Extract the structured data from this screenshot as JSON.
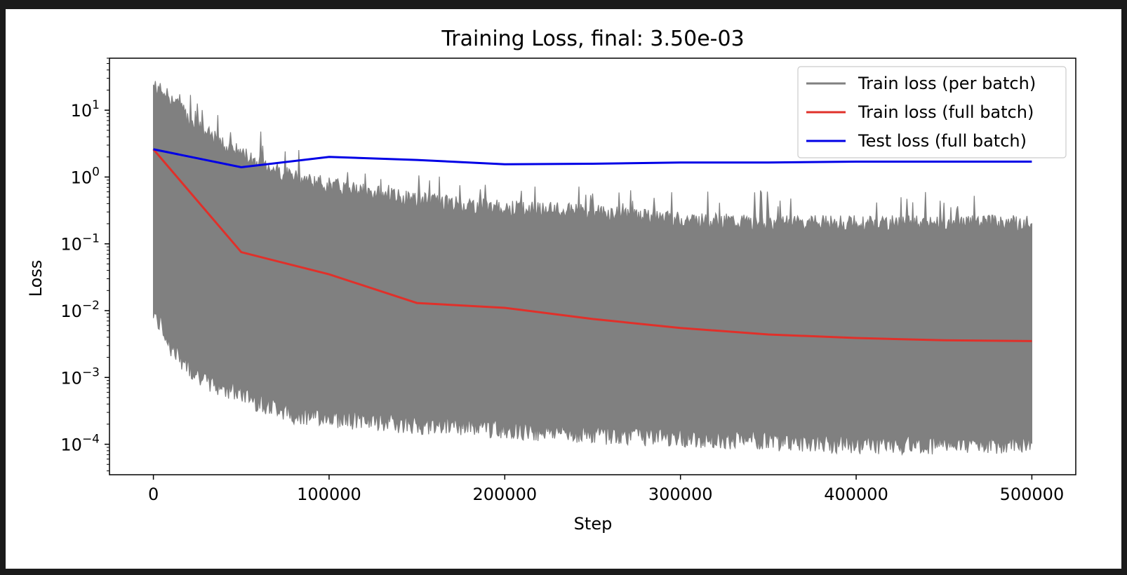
{
  "chart_data": {
    "type": "line",
    "title": "Training Loss, final: 3.50e-03",
    "xlabel": "Step",
    "ylabel": "Loss",
    "xlim": [
      -25000,
      525000
    ],
    "ylim": [
      3.5e-05,
      60
    ],
    "y_scale": "log",
    "grid": false,
    "legend_position": "top-right",
    "x_ticks": [
      {
        "value": 0,
        "label": "0"
      },
      {
        "value": 100000,
        "label": "100000"
      },
      {
        "value": 200000,
        "label": "200000"
      },
      {
        "value": 300000,
        "label": "300000"
      },
      {
        "value": 400000,
        "label": "400000"
      },
      {
        "value": 500000,
        "label": "500000"
      }
    ],
    "y_ticks": [
      {
        "value": 10,
        "base": "10",
        "exp": "1"
      },
      {
        "value": 1,
        "base": "10",
        "exp": "0"
      },
      {
        "value": 0.1,
        "base": "10",
        "exp": "−1"
      },
      {
        "value": 0.01,
        "base": "10",
        "exp": "−2"
      },
      {
        "value": 0.001,
        "base": "10",
        "exp": "−3"
      },
      {
        "value": 0.0001,
        "base": "10",
        "exp": "−4"
      }
    ],
    "series": [
      {
        "name": "Train loss (per batch)",
        "color": "#808080",
        "kind": "band",
        "x": [
          0,
          2000,
          5000,
          10000,
          20000,
          30000,
          40000,
          50000,
          60000,
          70000,
          80000,
          100000,
          120000,
          150000,
          200000,
          250000,
          300000,
          350000,
          400000,
          450000,
          500000
        ],
        "upper": [
          30,
          28,
          25,
          20,
          10,
          6,
          4,
          3,
          2.2,
          1.7,
          1.3,
          1.0,
          0.8,
          0.6,
          0.45,
          0.4,
          0.3,
          0.27,
          0.27,
          0.27,
          0.27
        ],
        "lower": [
          0.007,
          0.005,
          0.004,
          0.002,
          0.001,
          0.0006,
          0.0005,
          0.0004,
          0.0003,
          0.00025,
          0.0002,
          0.00018,
          0.00016,
          0.00014,
          0.00012,
          0.0001,
          9e-05,
          8e-05,
          7e-05,
          7e-05,
          7e-05
        ]
      },
      {
        "name": "Train loss (full batch)",
        "color": "#e0302a",
        "kind": "line",
        "x": [
          0,
          50000,
          100000,
          150000,
          200000,
          250000,
          300000,
          350000,
          400000,
          450000,
          500000
        ],
        "y": [
          2.6,
          0.075,
          0.035,
          0.013,
          0.011,
          0.0075,
          0.0055,
          0.0044,
          0.0039,
          0.0036,
          0.0035
        ]
      },
      {
        "name": "Test loss (full batch)",
        "color": "#0000e6",
        "kind": "line",
        "x": [
          0,
          50000,
          100000,
          150000,
          200000,
          250000,
          300000,
          350000,
          400000,
          450000,
          500000
        ],
        "y": [
          2.6,
          1.4,
          2.0,
          1.8,
          1.55,
          1.58,
          1.65,
          1.65,
          1.7,
          1.7,
          1.7
        ]
      }
    ]
  }
}
